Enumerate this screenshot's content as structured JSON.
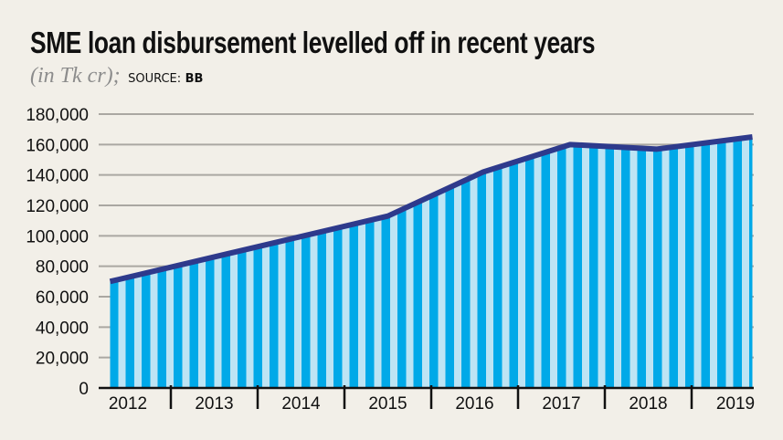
{
  "chart_data": {
    "type": "area",
    "title": "SME loan disbursement levelled off in recent years",
    "unit": "(in Tk cr);",
    "source_label": "SOURCE:",
    "source": "BB",
    "xlabel": "",
    "ylabel": "",
    "ylim": [
      0,
      180000
    ],
    "yticks": [
      "0",
      "20,000",
      "40,000",
      "60,000",
      "80,000",
      "100,000",
      "120,000",
      "140,000",
      "160,000",
      "180,000"
    ],
    "xtick_labels": [
      "2012",
      "2013",
      "2014",
      "2015",
      "2016",
      "2017",
      "2018",
      "2019"
    ],
    "grid": true,
    "series": [
      {
        "points": [
          {
            "x": 2012.3,
            "y": 70000
          },
          {
            "x": 2015.5,
            "y": 113000
          },
          {
            "x": 2016.6,
            "y": 142000
          },
          {
            "x": 2017.6,
            "y": 160000
          },
          {
            "x": 2018.6,
            "y": 157000
          },
          {
            "x": 2019.7,
            "y": 165000
          }
        ]
      }
    ],
    "colors": {
      "line": "#2e3a8c",
      "fill_dark": "#00a9e8",
      "fill_light": "#bde4f4",
      "grid": "#aaa7a2",
      "background": "#f2efe8"
    }
  }
}
